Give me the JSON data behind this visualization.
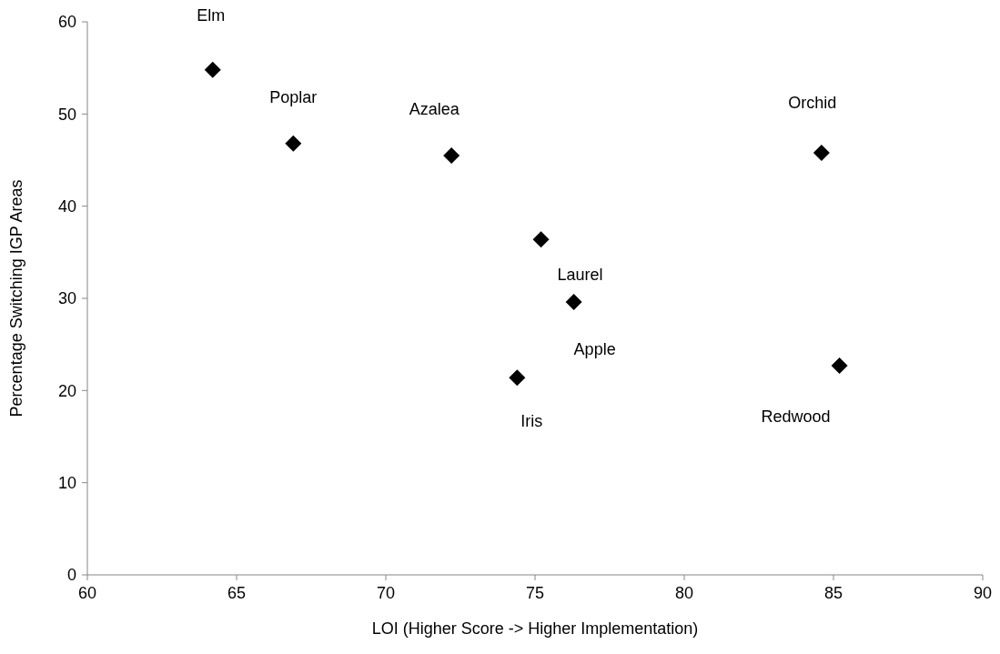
{
  "chart_data": {
    "type": "scatter",
    "xlabel": "LOI (Higher Score -> Higher Implementation)",
    "ylabel": "Percentage Switching IGP Areas",
    "x": [
      64.2,
      66.9,
      72.2,
      84.6,
      75.2,
      76.3,
      74.4,
      85.2
    ],
    "values": [
      54.8,
      46.8,
      45.5,
      45.8,
      36.4,
      29.6,
      21.4,
      22.7
    ],
    "color": "#000000",
    "marker": "diamond",
    "grid": false,
    "xlim": [
      60,
      90
    ],
    "xticks": [
      60,
      65,
      70,
      75,
      80,
      85,
      90
    ],
    "ylim": [
      0,
      60
    ],
    "yticks": [
      0,
      10,
      20,
      30,
      40,
      50,
      60
    ],
    "annotations": [
      {
        "text": "Elm",
        "x": 64.2,
        "y": 54.8
      },
      {
        "text": "Poplar",
        "x": 66.9,
        "y": 46.8
      },
      {
        "text": "Azalea",
        "x": 72.2,
        "y": 45.5
      },
      {
        "text": "Orchid",
        "x": 84.6,
        "y": 45.8
      },
      {
        "text": "Laurel",
        "x": 75.2,
        "y": 36.4
      },
      {
        "text": "Apple",
        "x": 76.3,
        "y": 29.6
      },
      {
        "text": "Iris",
        "x": 74.4,
        "y": 21.4
      },
      {
        "text": "Redwood",
        "x": 85.2,
        "y": 22.7
      }
    ]
  }
}
